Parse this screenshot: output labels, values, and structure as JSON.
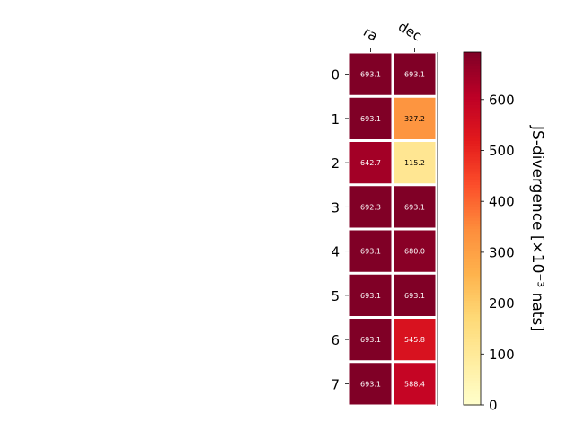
{
  "chart_data": {
    "type": "heatmap",
    "columns": [
      "ra",
      "dec"
    ],
    "rows": [
      "0",
      "1",
      "2",
      "3",
      "4",
      "5",
      "6",
      "7"
    ],
    "values": [
      [
        693.1,
        693.1
      ],
      [
        693.1,
        327.2
      ],
      [
        642.7,
        115.2
      ],
      [
        692.3,
        693.1
      ],
      [
        693.1,
        680.0
      ],
      [
        693.1,
        693.1
      ],
      [
        693.1,
        545.8
      ],
      [
        693.1,
        588.4
      ]
    ],
    "cell_labels": [
      [
        "693.1",
        "693.1"
      ],
      [
        "693.1",
        "327.2"
      ],
      [
        "642.7",
        "115.2"
      ],
      [
        "692.3",
        "693.1"
      ],
      [
        "693.1",
        "680.0"
      ],
      [
        "693.1",
        "693.1"
      ],
      [
        "693.1",
        "545.8"
      ],
      [
        "693.1",
        "588.4"
      ]
    ],
    "colorbar": {
      "label": "JS-divergence [×10⁻³ nats]",
      "range": [
        0,
        693.1
      ],
      "ticks": [
        0,
        100,
        200,
        300,
        400,
        500,
        600
      ],
      "tick_labels": [
        "0",
        "100",
        "200",
        "300",
        "400",
        "500",
        "600"
      ],
      "colormap": "YlOrRd"
    },
    "title": "",
    "xlabel": "",
    "ylabel": ""
  }
}
